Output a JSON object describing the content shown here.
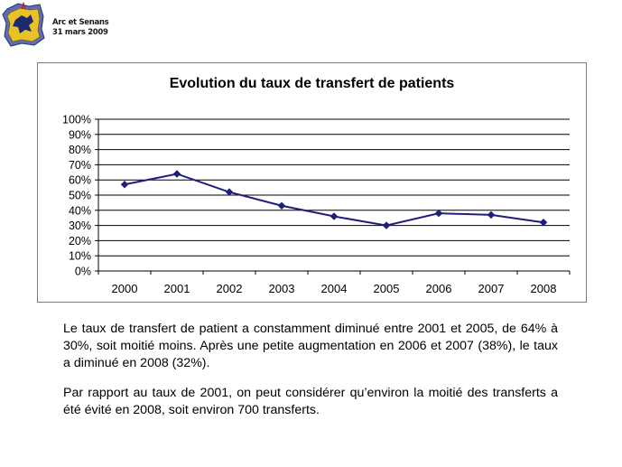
{
  "header": {
    "line1": "Arc et Senans",
    "line2": "31 mars 2009"
  },
  "chart_data": {
    "type": "line",
    "title": "Evolution du taux de transfert de patients",
    "categories": [
      "2000",
      "2001",
      "2002",
      "2003",
      "2004",
      "2005",
      "2006",
      "2007",
      "2008"
    ],
    "series": [
      {
        "values": [
          57,
          64,
          52,
          43,
          36,
          30,
          38,
          37,
          32
        ]
      }
    ],
    "y_ticks": [
      "0%",
      "10%",
      "20%",
      "30%",
      "40%",
      "50%",
      "60%",
      "70%",
      "80%",
      "90%",
      "100%"
    ],
    "ylim": [
      0,
      100
    ],
    "unit": "%",
    "grid": true,
    "legend": "none",
    "line_color": "#1f1f7a"
  },
  "text": {
    "paragraph1": "Le taux de transfert de patient a constamment diminué entre 2001 et 2005, de 64% à 30%, soit moitié moins. Après une petite augmentation en 2006 et 2007 (38%), le taux a diminué en 2008 (32%).",
    "paragraph2": "Par rapport au taux de 2001, on peut considérer qu’environ la moitié des transferts a été évité en 2008, soit environ 700 transferts."
  }
}
